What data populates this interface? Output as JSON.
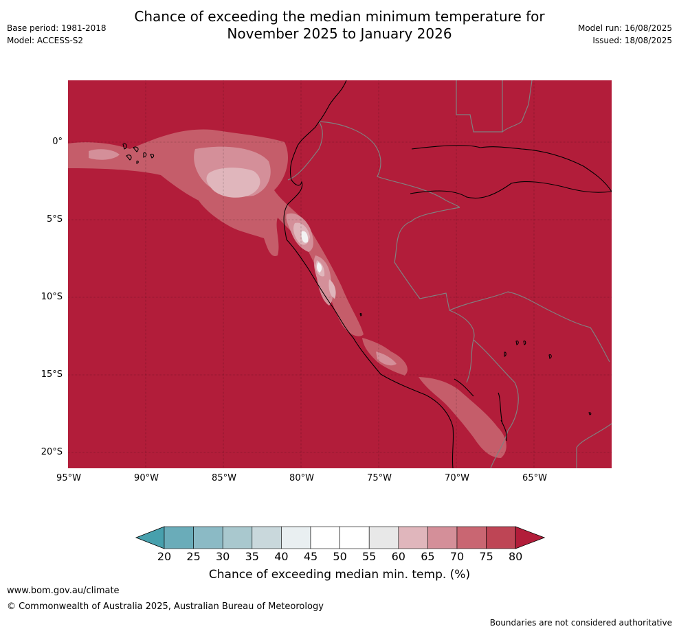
{
  "title_line1": "Chance of exceeding the median minimum temperature for",
  "title_line2": "November 2025 to January 2026",
  "base_period": "Base period: 1981-2018",
  "model": "Model: ACCESS-S2",
  "model_run": "Model run: 16/08/2025",
  "issued": "Issued: 18/08/2025",
  "lat_labels": [
    "0°",
    "5°S",
    "10°S",
    "15°S",
    "20°S"
  ],
  "lon_labels": [
    "95°W",
    "90°W",
    "85°W",
    "80°W",
    "75°W",
    "70°W",
    "65°W"
  ],
  "colorbar": {
    "ticks": [
      "20",
      "25",
      "30",
      "35",
      "40",
      "45",
      "50",
      "55",
      "60",
      "65",
      "70",
      "75",
      "80"
    ],
    "title": "Chance of exceeding median min. temp. (%)",
    "colors": {
      "below_20": "#47a0ad",
      "20_25": "#6aacb9",
      "25_30": "#8bbac5",
      "30_35": "#a9c8ce",
      "35_40": "#c9d8dc",
      "40_45": "#e9eff1",
      "45_50": "#ffffff",
      "50_55": "#ffffff",
      "55_60": "#e8e8e8",
      "60_65": "#e0b6bc",
      "65_70": "#d48f99",
      "70_75": "#c96672",
      "75_80": "#be4555",
      "above_80": "#b21d3a"
    }
  },
  "footer_url": "www.bom.gov.au/climate",
  "footer_copyright": "© Commonwealth of Australia 2025, Australian Bureau of Meteorology",
  "footer_note": "Boundaries are not considered authoritative"
}
